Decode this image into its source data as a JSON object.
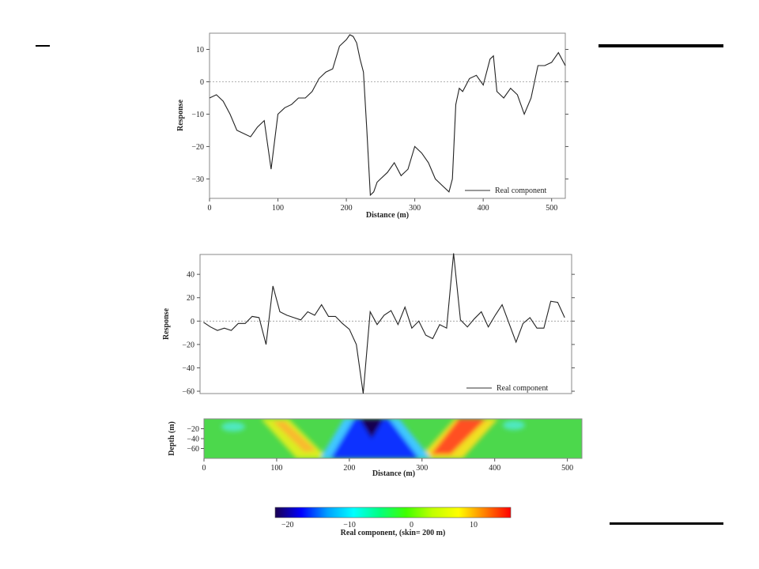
{
  "chart_data": [
    {
      "type": "line",
      "xlabel": "Distance (m)",
      "ylabel": "Response",
      "xlim": [
        0,
        520
      ],
      "ylim": [
        -36,
        15
      ],
      "xticks": [
        0,
        100,
        200,
        300,
        400,
        500
      ],
      "yticks": [
        10,
        0,
        -10,
        -20,
        -30
      ],
      "zero_line": true,
      "legend": "bottom-right",
      "series": [
        {
          "name": "Real component",
          "x": [
            0,
            10,
            20,
            30,
            40,
            50,
            60,
            70,
            80,
            90,
            100,
            110,
            120,
            130,
            140,
            150,
            160,
            170,
            180,
            190,
            200,
            205,
            210,
            215,
            220,
            225,
            230,
            235,
            240,
            245,
            250,
            260,
            270,
            280,
            290,
            300,
            310,
            320,
            330,
            340,
            350,
            355,
            360,
            365,
            370,
            380,
            390,
            400,
            410,
            415,
            420,
            430,
            440,
            450,
            460,
            470,
            480,
            490,
            500,
            510,
            520
          ],
          "y": [
            -5,
            -4,
            -6,
            -10,
            -15,
            -16,
            -17,
            -14,
            -12,
            -27,
            -10,
            -8,
            -7,
            -5,
            -5,
            -3,
            1,
            3,
            4,
            11,
            13,
            14.5,
            14,
            12,
            7,
            3,
            -15,
            -35,
            -34,
            -31,
            -30,
            -28,
            -25,
            -29,
            -27,
            -20,
            -22,
            -25,
            -30,
            -32,
            -34,
            -30,
            -7,
            -2,
            -3,
            1,
            2,
            -1,
            7,
            8,
            -3,
            -5,
            -2,
            -4,
            -10,
            -5,
            5,
            5,
            6,
            9,
            5
          ]
        }
      ]
    },
    {
      "type": "line",
      "xlabel": "",
      "ylabel": "Response",
      "xlim": [
        -5,
        530
      ],
      "ylim": [
        -62,
        57
      ],
      "xticks": [],
      "yticks": [
        40,
        20,
        0,
        -20,
        -40,
        -60
      ],
      "zero_line": true,
      "legend": "bottom-right",
      "series": [
        {
          "name": "Real component",
          "x": [
            0,
            10,
            20,
            30,
            40,
            50,
            60,
            70,
            80,
            90,
            100,
            110,
            120,
            130,
            140,
            150,
            160,
            170,
            180,
            190,
            200,
            210,
            220,
            230,
            240,
            250,
            260,
            270,
            280,
            290,
            300,
            310,
            320,
            330,
            340,
            350,
            360,
            370,
            380,
            390,
            400,
            410,
            420,
            430,
            440,
            450,
            460,
            470,
            480,
            490,
            500,
            510,
            520
          ],
          "y": [
            -1,
            -5,
            -8,
            -6,
            -8,
            -2,
            -2,
            4,
            3,
            -20,
            30,
            8,
            5,
            3,
            1,
            8,
            5,
            14,
            4,
            4,
            -2,
            -7,
            -20,
            -62,
            8,
            -3,
            5,
            9,
            -3,
            12,
            -6,
            0,
            -12,
            -15,
            -3,
            -6,
            58,
            1,
            -5,
            2,
            8,
            -5,
            5,
            14,
            -2,
            -18,
            -2,
            3,
            -6,
            -6,
            17,
            16,
            3
          ]
        }
      ]
    },
    {
      "type": "heatmap",
      "xlabel": "Distance (m)",
      "ylabel": "Depth (m)",
      "xlim": [
        0,
        520
      ],
      "ylim": [
        -80,
        0
      ],
      "xticks": [
        0,
        100,
        200,
        300,
        400,
        500
      ],
      "yticks": [
        -20,
        -40,
        -60
      ],
      "colorscale": [
        "#1a0050",
        "#0000ff",
        "#00a0ff",
        "#00ffff",
        "#00ff80",
        "#40ff00",
        "#c0ff00",
        "#ffff00",
        "#ff8000",
        "#ff0000"
      ],
      "colorbar": {
        "label": "Real component,  (skin=  200 m)",
        "range": [
          -22,
          16
        ],
        "ticks": [
          -20,
          -10,
          0,
          10
        ]
      }
    }
  ]
}
